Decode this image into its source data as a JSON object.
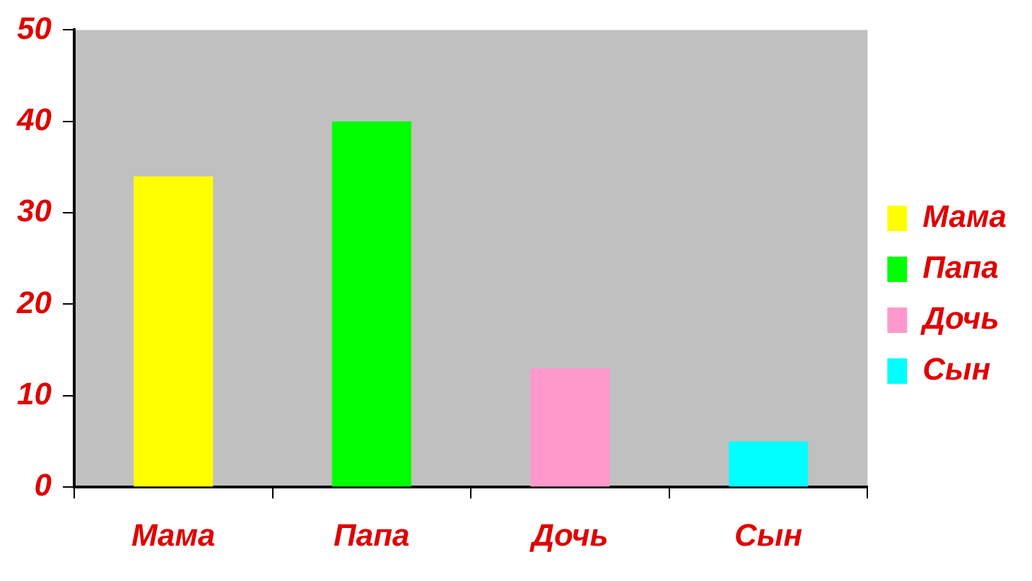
{
  "chart_data": {
    "type": "bar",
    "categories": [
      "Мама",
      "Папа",
      "Дочь",
      "Сын"
    ],
    "series": [
      {
        "name": "Мама",
        "color": "#ffff00",
        "values": [
          34,
          null,
          null,
          null
        ]
      },
      {
        "name": "Папа",
        "color": "#00ff00",
        "values": [
          null,
          40,
          null,
          null
        ]
      },
      {
        "name": "Дочь",
        "color": "#ff99cc",
        "values": [
          null,
          null,
          13,
          null
        ]
      },
      {
        "name": "Сын",
        "color": "#00ffff",
        "values": [
          null,
          null,
          null,
          5
        ]
      }
    ],
    "ylim": [
      0,
      50
    ],
    "yticks": [
      0,
      10,
      20,
      30,
      40,
      50
    ],
    "grid": false,
    "legend": "right"
  }
}
